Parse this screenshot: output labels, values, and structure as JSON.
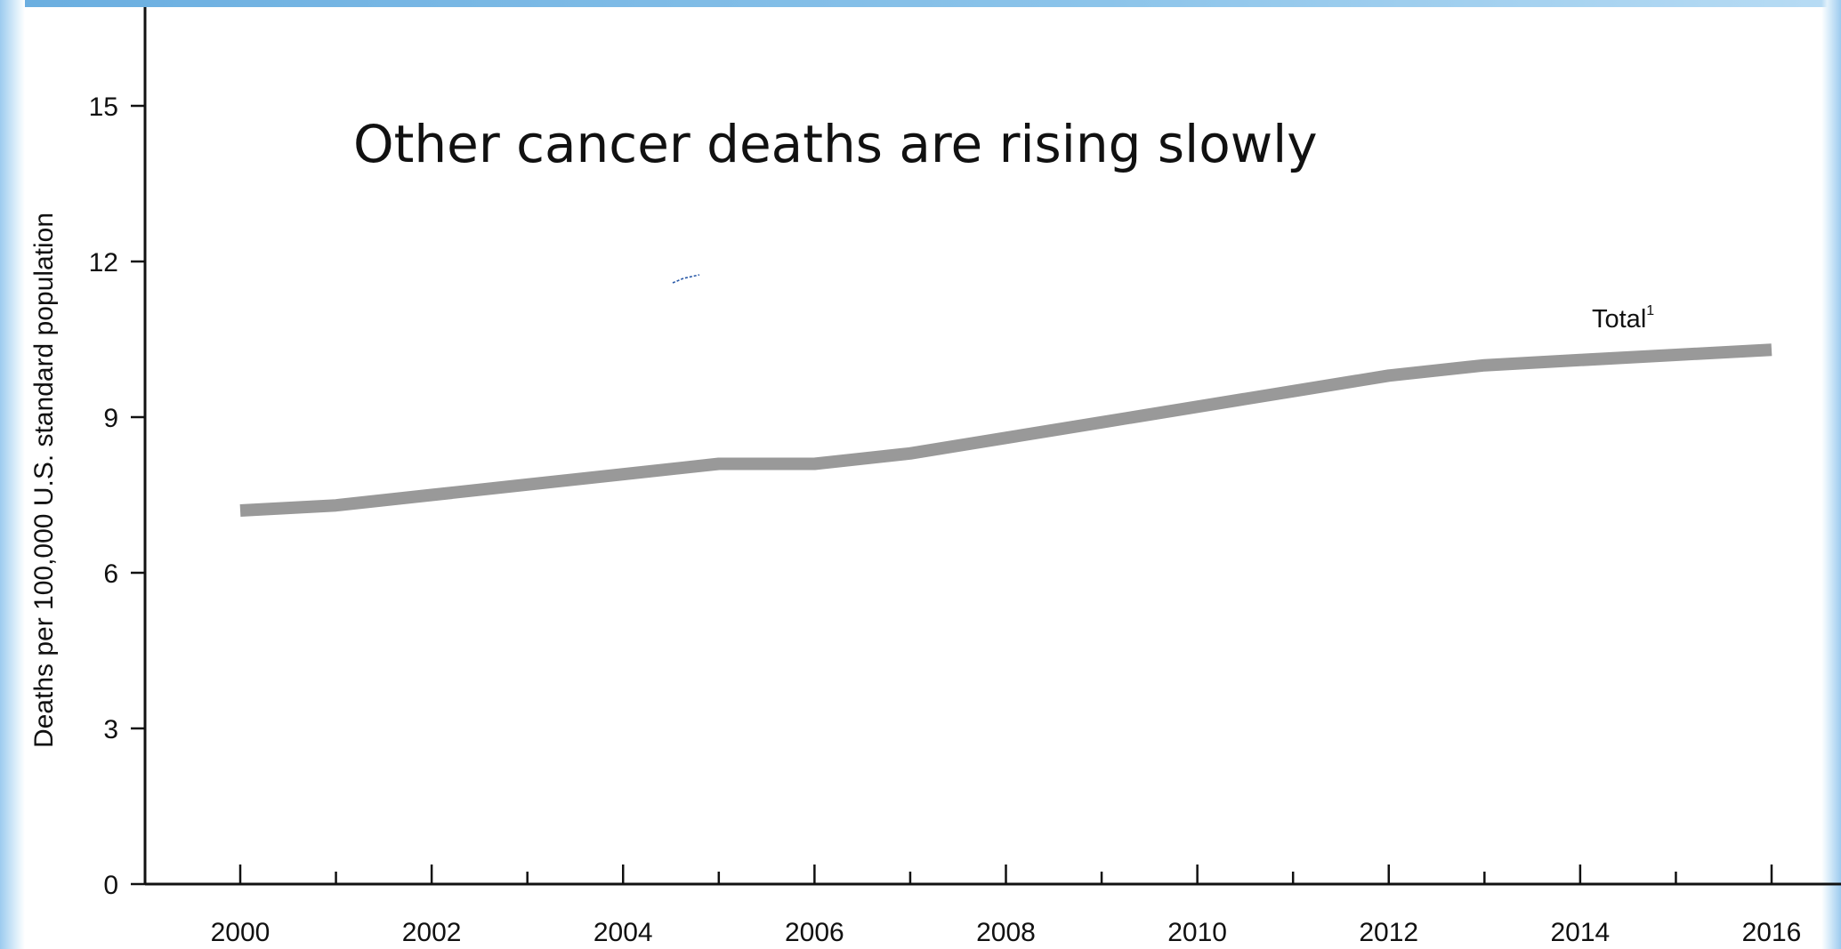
{
  "chart_data": {
    "type": "line",
    "title": "Other cancer deaths are rising slowly",
    "xlabel": "",
    "ylabel": "Deaths per 100,000 U.S. standard population",
    "xlim": [
      2000,
      2016
    ],
    "ylim": [
      0,
      17
    ],
    "y_ticks": [
      0,
      3,
      6,
      9,
      12,
      15
    ],
    "x_tick_labels": [
      "2000",
      "2002",
      "2004",
      "2006",
      "2008",
      "2010",
      "2012",
      "2014",
      "2016"
    ],
    "grid": false,
    "series": [
      {
        "name": "Total",
        "label_footnote": "1",
        "color": "#999999",
        "x": [
          2000,
          2001,
          2002,
          2003,
          2004,
          2005,
          2006,
          2007,
          2008,
          2009,
          2010,
          2011,
          2012,
          2013,
          2014,
          2015,
          2016
        ],
        "y": [
          7.2,
          7.3,
          7.5,
          7.7,
          7.9,
          8.1,
          8.1,
          8.3,
          8.6,
          8.9,
          9.2,
          9.5,
          9.8,
          10.0,
          10.1,
          10.2,
          10.3
        ]
      }
    ]
  },
  "colors": {
    "axis": "#111111",
    "line": "#999999",
    "frame": "#8cc4ea"
  }
}
